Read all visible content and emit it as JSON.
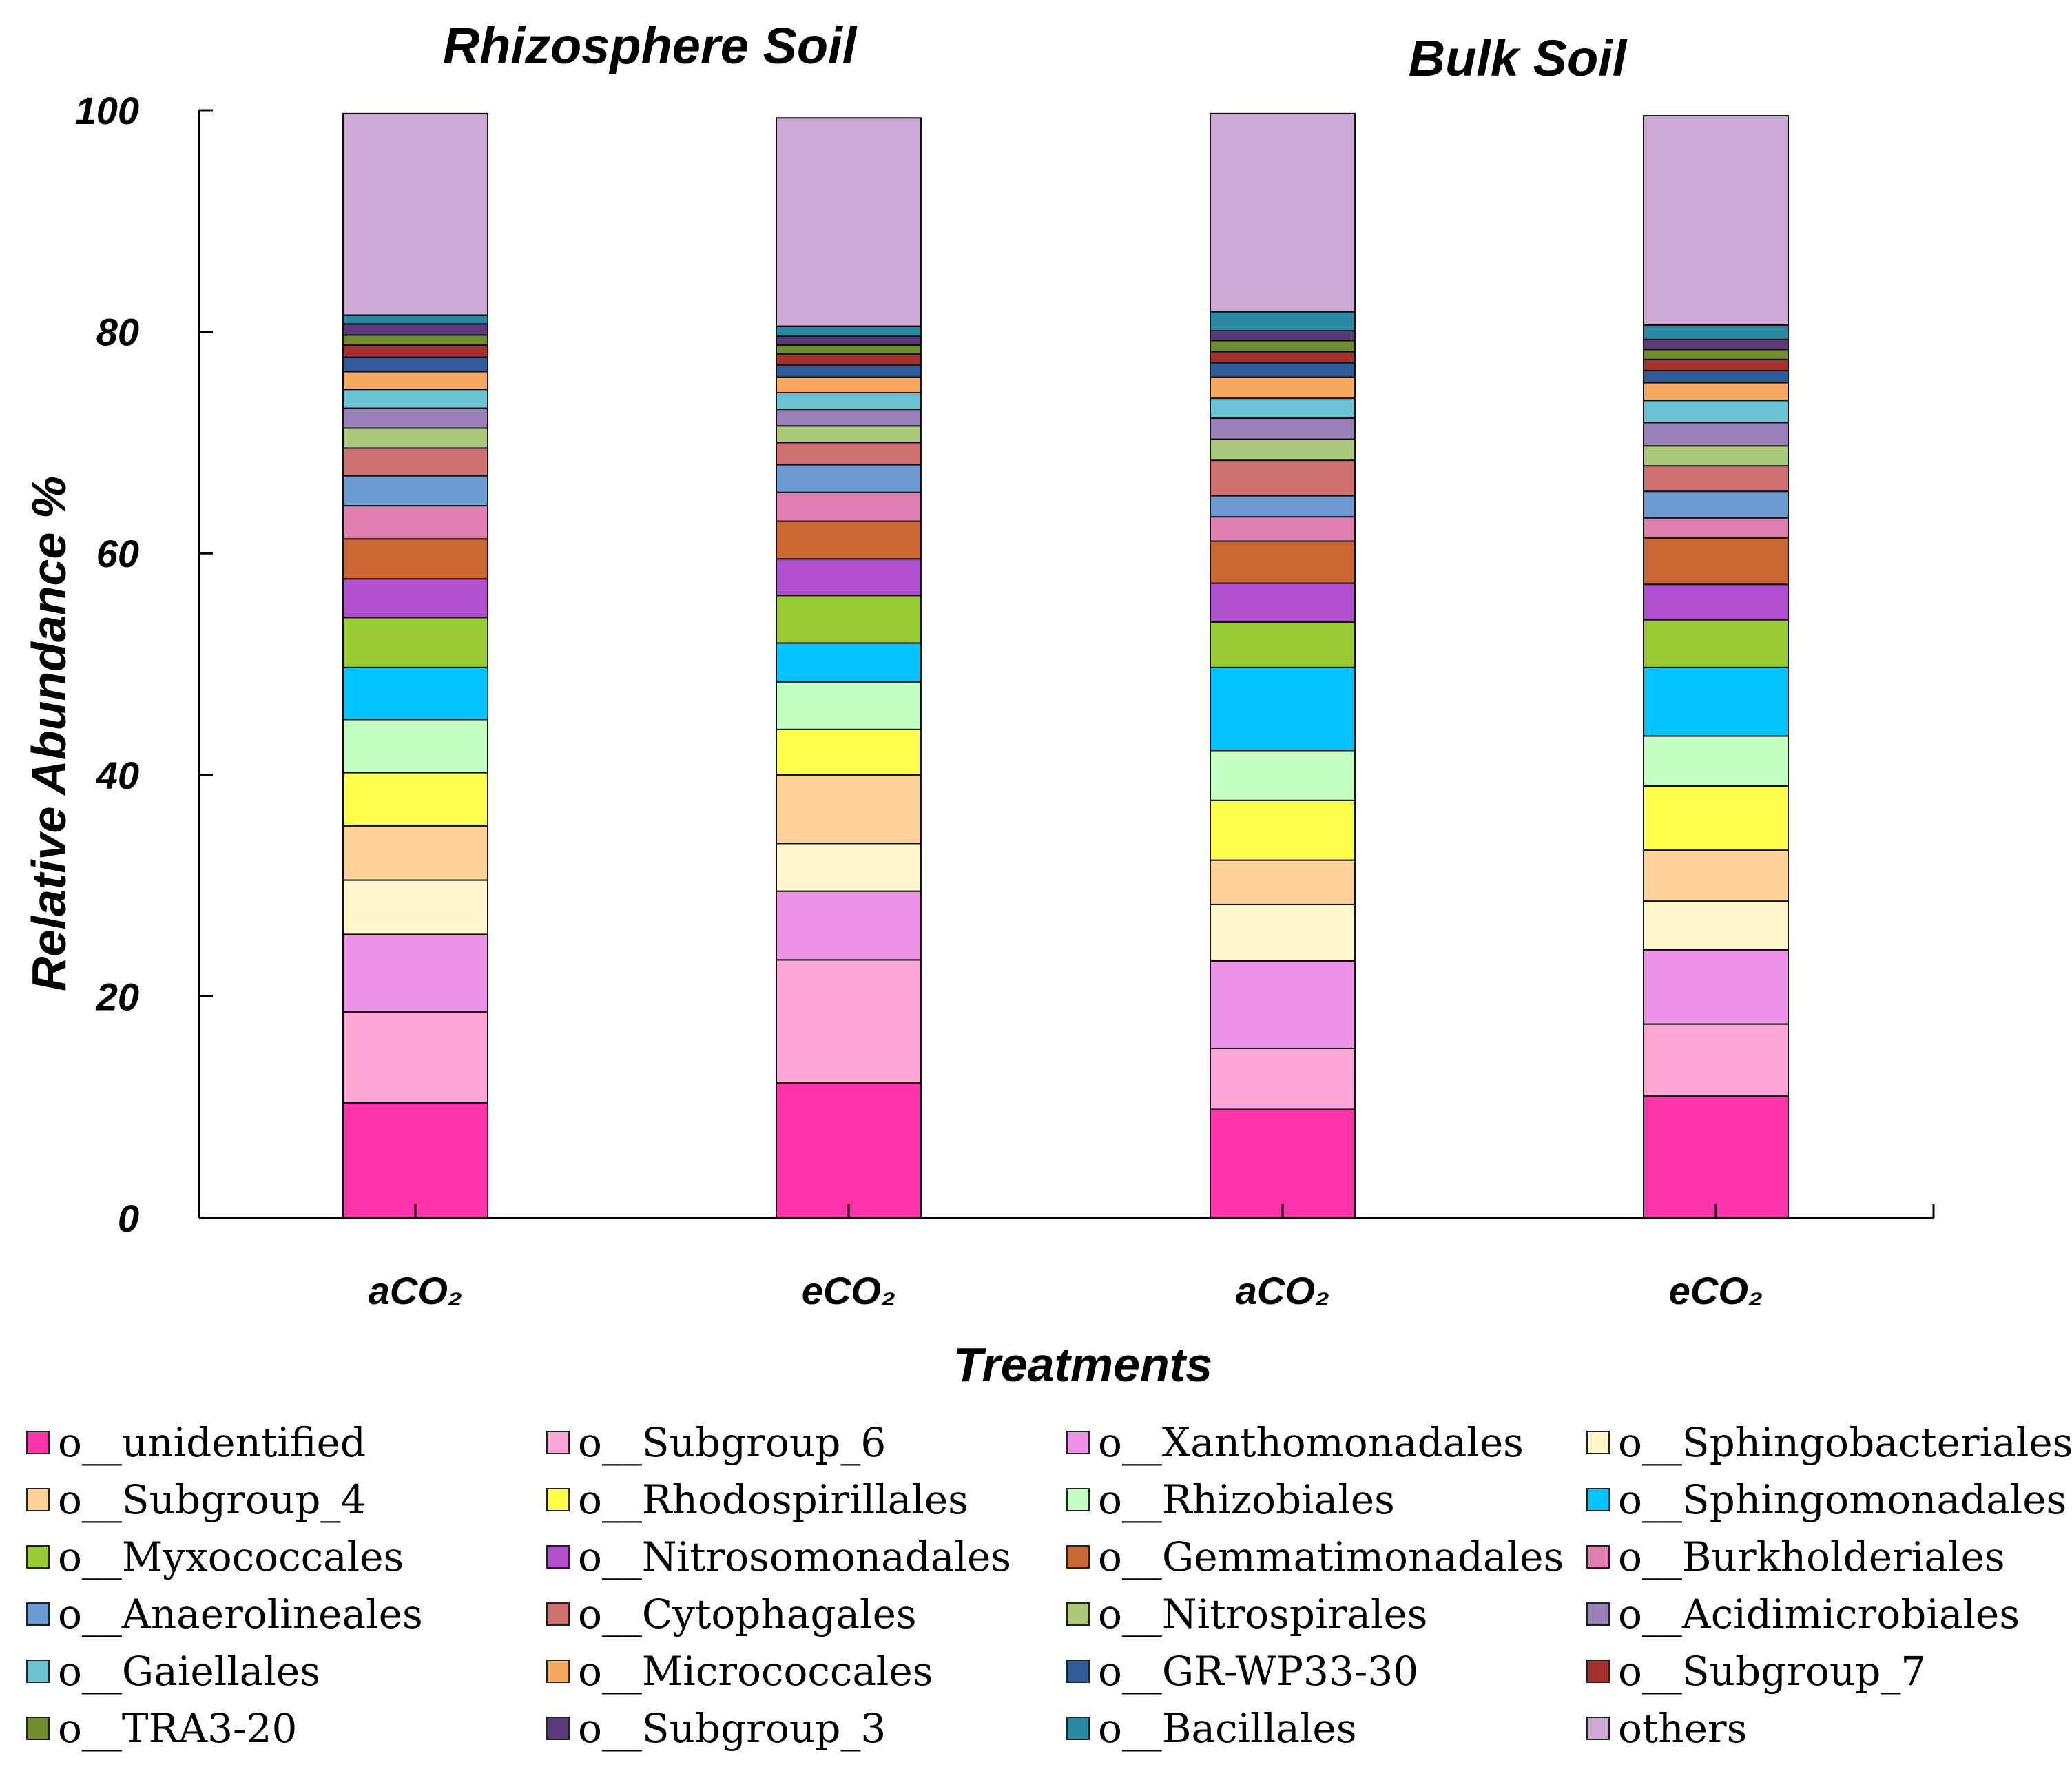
{
  "chart_data": {
    "type": "bar",
    "stacked": true,
    "titles": [
      "Rhizosphere Soil",
      "Bulk  Soil"
    ],
    "xlabel": "Treatments",
    "ylabel": "Relative Abundance %",
    "ylim": [
      0,
      100
    ],
    "yticks": [
      "0",
      "20",
      "40",
      "60",
      "80",
      "100"
    ],
    "categories": [
      "aCO₂",
      "eCO₂",
      "aCO₂",
      "eCO₂"
    ],
    "series": [
      {
        "name": "o__unidentified",
        "color": "#ff33aa",
        "values": [
          10.4,
          12.2,
          9.8,
          11.0
        ]
      },
      {
        "name": "o__Subgroup_6",
        "color": "#ffa6d9",
        "values": [
          8.2,
          11.1,
          5.5,
          6.5
        ]
      },
      {
        "name": "o__Xanthomonadales",
        "color": "#ee92ea",
        "values": [
          7.0,
          6.2,
          7.9,
          6.7
        ]
      },
      {
        "name": "o__Sphingobacteriales",
        "color": "#fff6cc",
        "values": [
          4.9,
          4.3,
          5.1,
          4.4
        ]
      },
      {
        "name": "o__Subgroup_4",
        "color": "#ffd299",
        "values": [
          4.9,
          6.2,
          4.0,
          4.6
        ]
      },
      {
        "name": "o__Rhodospirillales",
        "color": "#ffff4d",
        "values": [
          4.8,
          4.1,
          5.4,
          5.8
        ]
      },
      {
        "name": "o__Rhizobiales",
        "color": "#c3ffc3",
        "values": [
          4.8,
          4.3,
          4.5,
          4.5
        ]
      },
      {
        "name": "o__Sphingomonadales",
        "color": "#00c3ff",
        "values": [
          4.7,
          3.5,
          7.5,
          6.2
        ]
      },
      {
        "name": "o__Myxococcales",
        "color": "#99cc33",
        "values": [
          4.5,
          4.3,
          4.1,
          4.3
        ]
      },
      {
        "name": "o__Nitrosomonadales",
        "color": "#b04fcf",
        "values": [
          3.5,
          3.3,
          3.5,
          3.2
        ]
      },
      {
        "name": "o__Gemmatimonadales",
        "color": "#cc6633",
        "values": [
          3.6,
          3.4,
          3.8,
          4.2
        ]
      },
      {
        "name": "o__Burkholderiales",
        "color": "#e07eb0",
        "values": [
          3.0,
          2.6,
          2.2,
          1.8
        ]
      },
      {
        "name": "o__Anaerolineales",
        "color": "#6f9bd3",
        "values": [
          2.7,
          2.5,
          1.9,
          2.4
        ]
      },
      {
        "name": "o__Cytophagales",
        "color": "#d07070",
        "values": [
          2.5,
          2.0,
          3.2,
          2.3
        ]
      },
      {
        "name": "o__Nitrospirales",
        "color": "#adc97c",
        "values": [
          1.8,
          1.5,
          1.9,
          1.8
        ]
      },
      {
        "name": "o__Acidimicrobiales",
        "color": "#9a80b8",
        "values": [
          1.8,
          1.5,
          1.9,
          2.1
        ]
      },
      {
        "name": "o__Gaiellales",
        "color": "#6cc3d3",
        "values": [
          1.7,
          1.5,
          1.8,
          2.0
        ]
      },
      {
        "name": "o__Micrococcales",
        "color": "#f9a860",
        "values": [
          1.6,
          1.4,
          1.9,
          1.6
        ]
      },
      {
        "name": "o__GR-WP33-30",
        "color": "#2f5b9a",
        "values": [
          1.3,
          1.1,
          1.3,
          1.1
        ]
      },
      {
        "name": "o__Subgroup_7",
        "color": "#a53030",
        "values": [
          1.1,
          1.0,
          1.0,
          1.0
        ]
      },
      {
        "name": "o__TRA3-20",
        "color": "#6f8c2f",
        "values": [
          0.9,
          0.8,
          1.0,
          0.9
        ]
      },
      {
        "name": "o__Subgroup_3",
        "color": "#5b3a7a",
        "values": [
          1.0,
          0.8,
          0.9,
          0.9
        ]
      },
      {
        "name": "o__Bacillales",
        "color": "#2b8aa3",
        "values": [
          0.8,
          0.9,
          1.7,
          1.3
        ]
      },
      {
        "name": "others",
        "color": "#cdaad6",
        "values": [
          18.2,
          18.8,
          17.9,
          18.9
        ]
      }
    ]
  }
}
